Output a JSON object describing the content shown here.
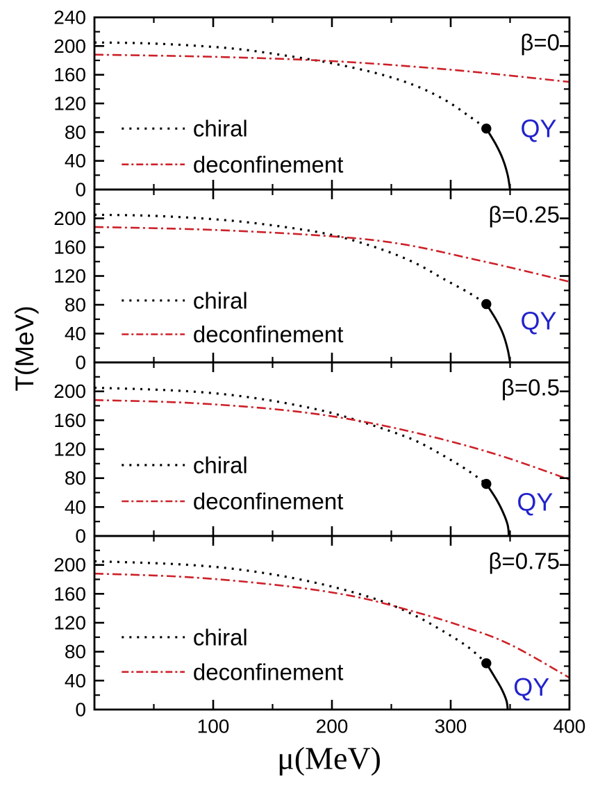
{
  "chart_data": {
    "type": "line",
    "title": "",
    "xlabel": "μ(MeV)",
    "ylabel": "T(MeV)",
    "xlim": [
      0,
      400
    ],
    "ylim_per_panel": [
      0,
      240
    ],
    "grid": false,
    "legend_position": "inside-left-middle",
    "x_major_ticks": [
      100,
      200,
      300,
      400
    ],
    "x_minor_ticks": [
      50,
      150,
      250,
      350
    ],
    "y_major_ticks": [
      40,
      80,
      120,
      160,
      200
    ],
    "y_minor_ticks": [
      20,
      60,
      100,
      140,
      180,
      220
    ],
    "x_tick_labels": [
      "100",
      "200",
      "300",
      "400"
    ],
    "colors": {
      "chiral": "#000000",
      "deconfinement": "#cd2028",
      "first_order": "#000000",
      "critical_point": "#000000",
      "qy_label": "#2222cc",
      "axis": "#000000"
    },
    "legend": [
      {
        "label": "chiral",
        "style": "dotted",
        "color": "#000000"
      },
      {
        "label": "deconfinement",
        "style": "dash-dot",
        "color": "#cd2028"
      }
    ],
    "panels": [
      {
        "beta_label": "β=0",
        "qy_label": "QY",
        "y_tick_labels": [
          "240",
          "200",
          "160",
          "120",
          "80",
          "40",
          "0"
        ],
        "critical_point": {
          "mu": 330,
          "T": 85
        },
        "qy_pos": {
          "mu": 374,
          "T": 85
        },
        "legend_T": [
          85,
          35
        ],
        "series": [
          {
            "name": "chiral",
            "style": "dotted",
            "color": "#000000",
            "points": [
              [
                0,
                205
              ],
              [
                40,
                204
              ],
              [
                80,
                201
              ],
              [
                120,
                196
              ],
              [
                160,
                187
              ],
              [
                200,
                176
              ],
              [
                240,
                161
              ],
              [
                270,
                145
              ],
              [
                295,
                125
              ],
              [
                315,
                103
              ],
              [
                330,
                85
              ]
            ]
          },
          {
            "name": "deconfinement",
            "style": "dash-dot",
            "color": "#cd2028",
            "points": [
              [
                0,
                188
              ],
              [
                100,
                185
              ],
              [
                200,
                179
              ],
              [
                300,
                167
              ],
              [
                400,
                150
              ]
            ]
          },
          {
            "name": "first-order",
            "style": "solid",
            "color": "#000000",
            "points": [
              [
                330,
                85
              ],
              [
                338,
                63
              ],
              [
                344,
                42
              ],
              [
                348,
                20
              ],
              [
                350,
                0
              ]
            ]
          }
        ]
      },
      {
        "beta_label": "β=0.25",
        "qy_label": "QY",
        "y_tick_labels": [
          "200",
          "160",
          "120",
          "80",
          "40",
          "0"
        ],
        "critical_point": {
          "mu": 330,
          "T": 81
        },
        "qy_pos": {
          "mu": 374,
          "T": 58
        },
        "legend_T": [
          86,
          39
        ],
        "series": [
          {
            "name": "chiral",
            "style": "dotted",
            "color": "#000000",
            "points": [
              [
                0,
                205
              ],
              [
                40,
                204
              ],
              [
                80,
                201
              ],
              [
                120,
                196
              ],
              [
                160,
                188
              ],
              [
                200,
                177
              ],
              [
                240,
                158
              ],
              [
                270,
                138
              ],
              [
                295,
                115
              ],
              [
                315,
                97
              ],
              [
                330,
                81
              ]
            ]
          },
          {
            "name": "deconfinement",
            "style": "dash-dot",
            "color": "#cd2028",
            "points": [
              [
                0,
                188
              ],
              [
                100,
                184
              ],
              [
                200,
                175
              ],
              [
                260,
                164
              ],
              [
                320,
                143
              ],
              [
                360,
                128
              ],
              [
                400,
                112
              ]
            ]
          },
          {
            "name": "first-order",
            "style": "solid",
            "color": "#000000",
            "points": [
              [
                330,
                81
              ],
              [
                338,
                60
              ],
              [
                344,
                40
              ],
              [
                348,
                18
              ],
              [
                350,
                0
              ]
            ]
          }
        ]
      },
      {
        "beta_label": "β=0.5",
        "qy_label": "QY",
        "y_tick_labels": [
          "200",
          "160",
          "120",
          "80",
          "40",
          "0"
        ],
        "critical_point": {
          "mu": 330,
          "T": 72
        },
        "qy_pos": {
          "mu": 371,
          "T": 47
        },
        "legend_T": [
          98,
          48
        ],
        "series": [
          {
            "name": "chiral",
            "style": "dotted",
            "color": "#000000",
            "points": [
              [
                0,
                205
              ],
              [
                40,
                203
              ],
              [
                80,
                200
              ],
              [
                120,
                194
              ],
              [
                160,
                184
              ],
              [
                200,
                170
              ],
              [
                240,
                150
              ],
              [
                270,
                132
              ],
              [
                295,
                110
              ],
              [
                315,
                90
              ],
              [
                330,
                72
              ]
            ]
          },
          {
            "name": "deconfinement",
            "style": "dash-dot",
            "color": "#cd2028",
            "points": [
              [
                0,
                188
              ],
              [
                80,
                184
              ],
              [
                160,
                174
              ],
              [
                220,
                160
              ],
              [
                280,
                139
              ],
              [
                340,
                112
              ],
              [
                400,
                78
              ]
            ]
          },
          {
            "name": "first-order",
            "style": "solid",
            "color": "#000000",
            "points": [
              [
                330,
                72
              ],
              [
                338,
                52
              ],
              [
                344,
                33
              ],
              [
                348,
                15
              ],
              [
                349,
                0
              ]
            ]
          }
        ]
      },
      {
        "beta_label": "β=0.75",
        "qy_label": "QY",
        "y_tick_labels": [
          "200",
          "160",
          "120",
          "80",
          "40",
          "0"
        ],
        "critical_point": {
          "mu": 330,
          "T": 64
        },
        "qy_pos": {
          "mu": 368,
          "T": 31
        },
        "legend_T": [
          100,
          52
        ],
        "series": [
          {
            "name": "chiral",
            "style": "dotted",
            "color": "#000000",
            "points": [
              [
                0,
                205
              ],
              [
                40,
                203
              ],
              [
                80,
                200
              ],
              [
                120,
                194
              ],
              [
                160,
                184
              ],
              [
                200,
                170
              ],
              [
                240,
                151
              ],
              [
                270,
                130
              ],
              [
                295,
                107
              ],
              [
                315,
                86
              ],
              [
                330,
                64
              ]
            ]
          },
          {
            "name": "deconfinement",
            "style": "dash-dot",
            "color": "#cd2028",
            "points": [
              [
                0,
                188
              ],
              [
                80,
                183
              ],
              [
                160,
                171
              ],
              [
                220,
                156
              ],
              [
                270,
                135
              ],
              [
                310,
                115
              ],
              [
                350,
                90
              ],
              [
                400,
                44
              ]
            ]
          },
          {
            "name": "first-order",
            "style": "solid",
            "color": "#000000",
            "points": [
              [
                330,
                64
              ],
              [
                337,
                45
              ],
              [
                343,
                28
              ],
              [
                347,
                12
              ],
              [
                348,
                0
              ]
            ]
          }
        ]
      }
    ]
  }
}
